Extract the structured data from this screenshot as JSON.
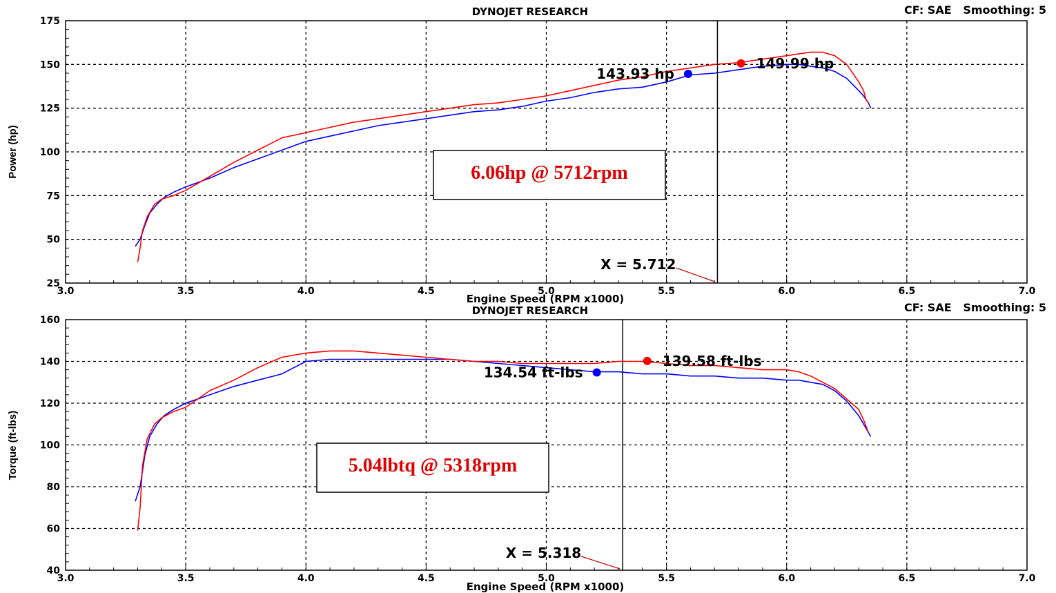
{
  "chart_data": [
    {
      "type": "line",
      "title": "DYNOJET RESEARCH",
      "corner_info": "CF: SAE   Smoothing: 5",
      "xlabel": "Engine Speed (RPM x1000)",
      "ylabel": "Power (hp)",
      "xlim": [
        3.0,
        7.0
      ],
      "ylim": [
        25,
        175
      ],
      "xticks": [
        "3.0",
        "3.5",
        "4.0",
        "4.5",
        "5.0",
        "5.5",
        "6.0",
        "6.5",
        "7.0"
      ],
      "yticks": [
        "25",
        "50",
        "75",
        "100",
        "125",
        "150",
        "175"
      ],
      "grid": true,
      "series": [
        {
          "color": "#ff0000",
          "x": [
            3.3,
            3.31,
            3.32,
            3.34,
            3.37,
            3.4,
            3.45,
            3.5,
            3.6,
            3.7,
            3.8,
            3.9,
            4.0,
            4.1,
            4.2,
            4.3,
            4.4,
            4.5,
            4.6,
            4.7,
            4.8,
            4.9,
            5.0,
            5.1,
            5.2,
            5.3,
            5.4,
            5.5,
            5.6,
            5.7,
            5.8,
            5.9,
            6.0,
            6.05,
            6.1,
            6.15,
            6.2,
            6.25,
            6.3,
            6.32,
            6.33,
            6.34
          ],
          "y": [
            37,
            45,
            55,
            63,
            70,
            73,
            75,
            78,
            86,
            94,
            101,
            108,
            111,
            114,
            117,
            119,
            121,
            123,
            125,
            127,
            128,
            130,
            132,
            135,
            138,
            141,
            143,
            146,
            148,
            150,
            151,
            153,
            155,
            156,
            157,
            157,
            155,
            150,
            140,
            135,
            130,
            128
          ]
        },
        {
          "color": "#0000ff",
          "x": [
            3.29,
            3.31,
            3.33,
            3.35,
            3.38,
            3.41,
            3.45,
            3.5,
            3.6,
            3.7,
            3.8,
            3.9,
            4.0,
            4.1,
            4.2,
            4.3,
            4.4,
            4.5,
            4.6,
            4.7,
            4.8,
            4.9,
            5.0,
            5.1,
            5.2,
            5.3,
            5.4,
            5.5,
            5.6,
            5.7,
            5.8,
            5.9,
            6.0,
            6.05,
            6.1,
            6.15,
            6.2,
            6.25,
            6.3,
            6.32,
            6.34,
            6.35
          ],
          "y": [
            46,
            50,
            58,
            65,
            70,
            74,
            77,
            80,
            85,
            91,
            96,
            101,
            106,
            109,
            112,
            115,
            117,
            119,
            121,
            123,
            124,
            126,
            129,
            131,
            134,
            136,
            137,
            140,
            144,
            145,
            147,
            149,
            150,
            150,
            149,
            148,
            146,
            142,
            135,
            132,
            128,
            125
          ]
        }
      ],
      "markers": [
        {
          "color": "#0000ff",
          "x": 5.59,
          "y": 144.6,
          "label": "143.93 hp"
        },
        {
          "color": "#ff0000",
          "x": 5.81,
          "y": 150.6,
          "label": "149.99 hp"
        }
      ],
      "cursor": {
        "x": 5.712,
        "label": "X = 5.712"
      },
      "annotation": "6.06hp @ 5712rpm"
    },
    {
      "type": "line",
      "title": "DYNOJET RESEARCH",
      "corner_info": "CF: SAE   Smoothing: 5",
      "xlabel": "Engine Speed (RPM x1000)",
      "ylabel": "Torque (ft-lbs)",
      "xlim": [
        3.0,
        7.0
      ],
      "ylim": [
        40,
        160
      ],
      "xticks": [
        "3.0",
        "3.5",
        "4.0",
        "4.5",
        "5.0",
        "5.5",
        "6.0",
        "6.5",
        "7.0"
      ],
      "yticks": [
        "40",
        "60",
        "80",
        "100",
        "120",
        "140",
        "160"
      ],
      "grid": true,
      "series": [
        {
          "color": "#ff0000",
          "x": [
            3.3,
            3.31,
            3.32,
            3.34,
            3.37,
            3.4,
            3.45,
            3.5,
            3.6,
            3.7,
            3.8,
            3.9,
            4.0,
            4.1,
            4.2,
            4.3,
            4.4,
            4.5,
            4.6,
            4.7,
            4.8,
            4.9,
            5.0,
            5.1,
            5.2,
            5.3,
            5.4,
            5.5,
            5.6,
            5.7,
            5.8,
            5.9,
            6.0,
            6.05,
            6.1,
            6.15,
            6.2,
            6.25,
            6.3,
            6.32,
            6.33,
            6.34
          ],
          "y": [
            59,
            70,
            90,
            103,
            110,
            113,
            116,
            118,
            126,
            131,
            137,
            142,
            144,
            145,
            145,
            144,
            143,
            142,
            141,
            140,
            140,
            139,
            139,
            139,
            139,
            140,
            140,
            139,
            138,
            138,
            137,
            136,
            136,
            135,
            133,
            130,
            127,
            122,
            117,
            112,
            109,
            106
          ]
        },
        {
          "color": "#0000ff",
          "x": [
            3.29,
            3.31,
            3.33,
            3.35,
            3.38,
            3.41,
            3.45,
            3.5,
            3.6,
            3.7,
            3.8,
            3.9,
            4.0,
            4.1,
            4.2,
            4.3,
            4.4,
            4.5,
            4.6,
            4.7,
            4.8,
            4.9,
            5.0,
            5.1,
            5.2,
            5.3,
            5.4,
            5.5,
            5.6,
            5.7,
            5.8,
            5.9,
            6.0,
            6.05,
            6.1,
            6.15,
            6.2,
            6.25,
            6.3,
            6.32,
            6.34,
            6.35
          ],
          "y": [
            73,
            80,
            95,
            104,
            110,
            114,
            117,
            120,
            124,
            128,
            131,
            134,
            140,
            141,
            141,
            141,
            141,
            141,
            141,
            140,
            139,
            138,
            137,
            136,
            135,
            135,
            134,
            134,
            133,
            133,
            132,
            132,
            131,
            131,
            130,
            129,
            126,
            121,
            114,
            110,
            106,
            104
          ]
        }
      ],
      "markers": [
        {
          "color": "#0000ff",
          "x": 5.21,
          "y": 134.7,
          "label": "134.54 ft-lbs"
        },
        {
          "color": "#ff0000",
          "x": 5.42,
          "y": 140.2,
          "label": "139.58 ft-lbs"
        }
      ],
      "cursor": {
        "x": 5.318,
        "label": "X = 5.318"
      },
      "annotation": "5.04lbtq @ 5318rpm"
    }
  ]
}
